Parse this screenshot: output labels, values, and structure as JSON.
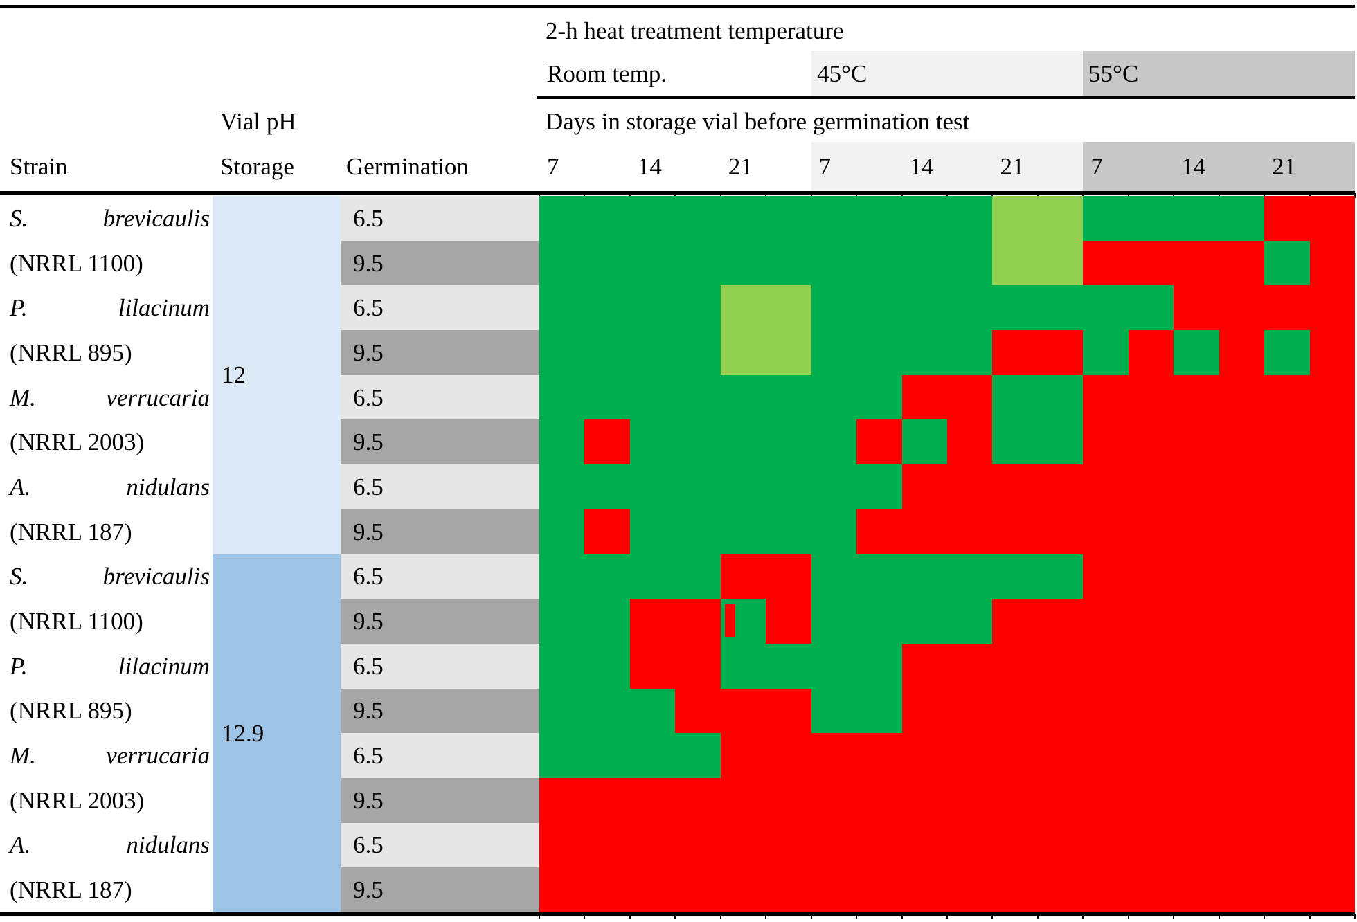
{
  "header": {
    "treatment_title": "2-h heat treatment temperature",
    "temperatures": [
      "Room temp.",
      "45°C",
      "55°C"
    ],
    "days_title": "Days in storage vial before germination test",
    "day_labels": [
      "7",
      "14",
      "21",
      "7",
      "14",
      "21",
      "7",
      "14",
      "21"
    ],
    "strain_label": "Strain",
    "vial_ph_label": "Vial pH",
    "storage_label": "Storage",
    "germination_label": "Germination"
  },
  "body": {
    "storage_groups": [
      {
        "ph": "12",
        "row_span": 8
      },
      {
        "ph": "12.9",
        "row_span": 8
      }
    ],
    "rows": [
      {
        "type": "species",
        "genus": "S.",
        "species": "brevicaulis",
        "germ": "6.5"
      },
      {
        "type": "code",
        "code": "(NRRL 1100)",
        "germ": "9.5"
      },
      {
        "type": "species",
        "genus": "P.",
        "species": "lilacinum",
        "germ": "6.5"
      },
      {
        "type": "code",
        "code": "(NRRL 895)",
        "germ": "9.5"
      },
      {
        "type": "species",
        "genus": "M.",
        "species": "verrucaria",
        "germ": "6.5"
      },
      {
        "type": "code",
        "code": "(NRRL 2003)",
        "germ": "9.5"
      },
      {
        "type": "species",
        "genus": "A.",
        "species": "nidulans",
        "germ": "6.5"
      },
      {
        "type": "code",
        "code": "(NRRL 187)",
        "germ": "9.5"
      },
      {
        "type": "species",
        "genus": "S.",
        "species": "brevicaulis",
        "germ": "6.5"
      },
      {
        "type": "code",
        "code": "(NRRL 1100)",
        "germ": "9.5"
      },
      {
        "type": "species",
        "genus": "P.",
        "species": "lilacinum",
        "germ": "6.5"
      },
      {
        "type": "code",
        "code": "(NRRL 895)",
        "germ": "9.5"
      },
      {
        "type": "species",
        "genus": "M.",
        "species": "verrucaria",
        "germ": "6.5"
      },
      {
        "type": "code",
        "code": "(NRRL 2003)",
        "germ": "9.5"
      },
      {
        "type": "species",
        "genus": "A.",
        "species": "nidulans",
        "germ": "6.5"
      },
      {
        "type": "code",
        "code": "(NRRL 187)",
        "germ": "9.5"
      }
    ]
  },
  "colors": {
    "green": "#00B050",
    "light_green": "#92D050",
    "red": "#FF0000",
    "ph12_bg": "#DCE9F6",
    "ph129_bg": "#9DC3E6",
    "germ_65_bg": "#E7E6E6",
    "germ_95_bg": "#A6A6A6",
    "temp45_bg": "#F2F2F2",
    "temp55_bg": "#C8C8C8"
  },
  "chart_data": {
    "type": "heatmap",
    "title": "2-h heat treatment temperature",
    "column_sections": [
      "Room temp.",
      "45°C",
      "55°C"
    ],
    "days_per_section": [
      "7",
      "14",
      "21"
    ],
    "row_groups": [
      {
        "storage_ph": "12",
        "rows": [
          "S. brevicaulis 6.5",
          "(NRRL 1100) 9.5",
          "P. lilacinum 6.5",
          "(NRRL 895) 9.5",
          "M. verrucaria 6.5",
          "(NRRL 2003) 9.5",
          "A. nidulans 6.5",
          "(NRRL 187) 9.5"
        ]
      },
      {
        "storage_ph": "12.9",
        "rows": [
          "S. brevicaulis 6.5",
          "(NRRL 1100) 9.5",
          "P. lilacinum 6.5",
          "(NRRL 895) 9.5",
          "M. verrucaria 6.5",
          "(NRRL 2003) 9.5",
          "A. nidulans 6.5",
          "(NRRL 187) 9.5"
        ]
      }
    ],
    "color_key": {
      "G": "#00B050",
      "LG": "#92D050",
      "R": "#FF0000",
      "GS": "#00B050 with thin #FF0000 stripe"
    },
    "cells": [
      [
        "G",
        "G",
        "G",
        "G",
        "G",
        "LG",
        "G",
        "G",
        "R"
      ],
      [
        "G",
        "G",
        "G",
        "G",
        "G",
        "LG",
        "R",
        "R",
        "G|R"
      ],
      [
        "G",
        "G",
        "LG",
        "G",
        "G",
        "G",
        "G",
        "R",
        "R"
      ],
      [
        "G",
        "G",
        "LG",
        "G",
        "G",
        "R",
        "G|R",
        "G|R",
        "G|R"
      ],
      [
        "G",
        "G",
        "G",
        "G",
        "R",
        "G",
        "R",
        "R",
        "R"
      ],
      [
        "G|R",
        "G",
        "G",
        "G|R",
        "G|R",
        "G",
        "R",
        "R",
        "R"
      ],
      [
        "G",
        "G",
        "G",
        "G",
        "R",
        "R",
        "R",
        "R",
        "R"
      ],
      [
        "G|R",
        "G",
        "G",
        "G|R",
        "R",
        "R",
        "R",
        "R",
        "R"
      ],
      [
        "G",
        "G",
        "R",
        "G",
        "G",
        "G",
        "R",
        "R",
        "R"
      ],
      [
        "G",
        "R",
        "GS|R",
        "G",
        "G",
        "R",
        "R",
        "R",
        "R"
      ],
      [
        "G",
        "R",
        "G",
        "G",
        "R",
        "R",
        "R",
        "R",
        "R"
      ],
      [
        "G",
        "G|R",
        "R",
        "G",
        "R",
        "R",
        "R",
        "R",
        "R"
      ],
      [
        "G",
        "G",
        "R",
        "R",
        "R",
        "R",
        "R",
        "R",
        "R"
      ],
      [
        "R",
        "R",
        "R",
        "R",
        "R",
        "R",
        "R",
        "R",
        "R"
      ],
      [
        "R",
        "R",
        "R",
        "R",
        "R",
        "R",
        "R",
        "R",
        "R"
      ],
      [
        "R",
        "R",
        "R",
        "R",
        "R",
        "R",
        "R",
        "R",
        "R"
      ]
    ]
  }
}
